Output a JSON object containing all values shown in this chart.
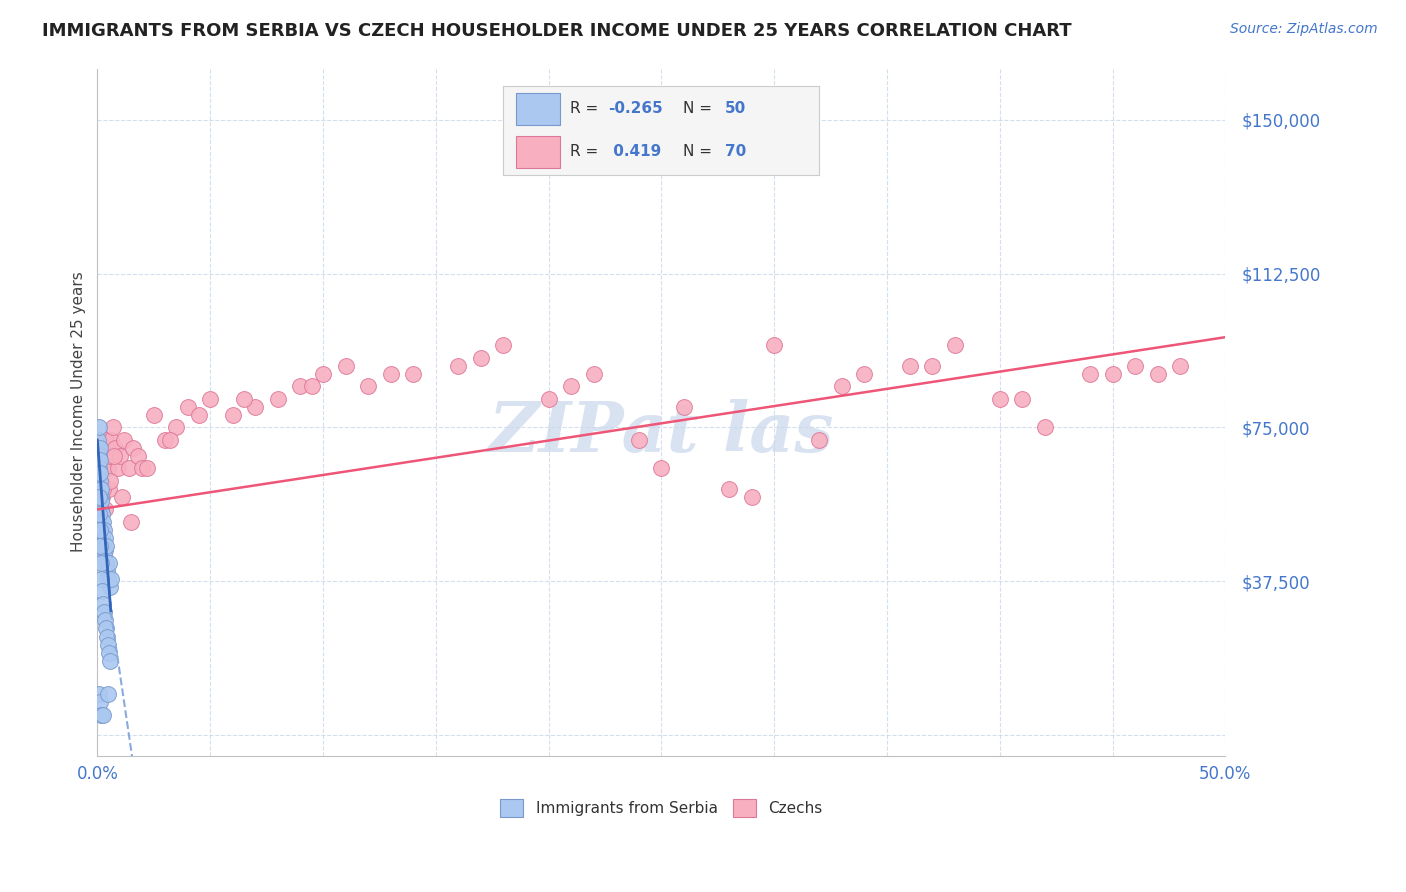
{
  "title": "IMMIGRANTS FROM SERBIA VS CZECH HOUSEHOLDER INCOME UNDER 25 YEARS CORRELATION CHART",
  "source": "Source: ZipAtlas.com",
  "ylabel": "Householder Income Under 25 years",
  "xlim": [
    0.0,
    50.0
  ],
  "ylim": [
    -5000,
    162500
  ],
  "yticks": [
    0,
    37500,
    75000,
    112500,
    150000
  ],
  "ytick_labels": [
    "",
    "$37,500",
    "$75,000",
    "$112,500",
    "$150,000"
  ],
  "serbia_color": "#aac8f0",
  "serbia_edge_color": "#7799cc",
  "czech_color": "#f8b0c0",
  "czech_edge_color": "#dd7799",
  "serbia_R": -0.265,
  "serbia_N": 50,
  "czech_R": 0.419,
  "czech_N": 70,
  "serbia_trend_color": "#3366bb",
  "serbia_trend_dash_color": "#88aadd",
  "czech_trend_color": "#ee5577",
  "watermark_color": "#c0d0e8",
  "serbia_x": [
    0.05,
    0.07,
    0.08,
    0.09,
    0.1,
    0.1,
    0.11,
    0.12,
    0.13,
    0.14,
    0.15,
    0.16,
    0.17,
    0.18,
    0.19,
    0.2,
    0.22,
    0.24,
    0.26,
    0.28,
    0.3,
    0.32,
    0.35,
    0.38,
    0.4,
    0.43,
    0.46,
    0.5,
    0.55,
    0.6,
    0.07,
    0.09,
    0.11,
    0.13,
    0.15,
    0.17,
    0.21,
    0.25,
    0.29,
    0.33,
    0.37,
    0.42,
    0.48,
    0.53,
    0.58,
    0.08,
    0.12,
    0.16,
    0.23,
    0.45
  ],
  "serbia_y": [
    72000,
    68000,
    75000,
    65000,
    70000,
    62000,
    67000,
    64000,
    60000,
    58000,
    55000,
    60000,
    52000,
    57000,
    54000,
    50000,
    48000,
    52000,
    46000,
    50000,
    44000,
    48000,
    45000,
    42000,
    46000,
    40000,
    38000,
    42000,
    36000,
    38000,
    58000,
    54000,
    50000,
    46000,
    42000,
    38000,
    35000,
    32000,
    30000,
    28000,
    26000,
    24000,
    22000,
    20000,
    18000,
    10000,
    8000,
    5000,
    5000,
    10000
  ],
  "czech_x": [
    0.15,
    0.2,
    0.25,
    0.3,
    0.35,
    0.4,
    0.45,
    0.5,
    0.55,
    0.6,
    0.7,
    0.8,
    0.9,
    1.0,
    1.2,
    1.4,
    1.6,
    1.8,
    2.0,
    2.5,
    3.0,
    3.5,
    4.0,
    5.0,
    6.0,
    7.0,
    8.0,
    9.0,
    10.0,
    11.0,
    12.0,
    14.0,
    16.0,
    18.0,
    20.0,
    22.0,
    24.0,
    26.0,
    28.0,
    30.0,
    32.0,
    34.0,
    36.0,
    38.0,
    40.0,
    42.0,
    44.0,
    46.0,
    47.0,
    48.0,
    0.25,
    0.35,
    0.55,
    0.75,
    1.1,
    1.5,
    2.2,
    3.2,
    4.5,
    6.5,
    9.5,
    13.0,
    17.0,
    21.0,
    25.0,
    29.0,
    33.0,
    37.0,
    41.0,
    45.0
  ],
  "czech_y": [
    62000,
    58000,
    65000,
    70000,
    68000,
    72000,
    65000,
    60000,
    68000,
    72000,
    75000,
    70000,
    65000,
    68000,
    72000,
    65000,
    70000,
    68000,
    65000,
    78000,
    72000,
    75000,
    80000,
    82000,
    78000,
    80000,
    82000,
    85000,
    88000,
    90000,
    85000,
    88000,
    90000,
    95000,
    82000,
    88000,
    72000,
    80000,
    60000,
    95000,
    72000,
    88000,
    90000,
    95000,
    82000,
    75000,
    88000,
    90000,
    88000,
    90000,
    60000,
    55000,
    62000,
    68000,
    58000,
    52000,
    65000,
    72000,
    78000,
    82000,
    85000,
    88000,
    92000,
    85000,
    65000,
    58000,
    85000,
    90000,
    82000,
    88000
  ]
}
